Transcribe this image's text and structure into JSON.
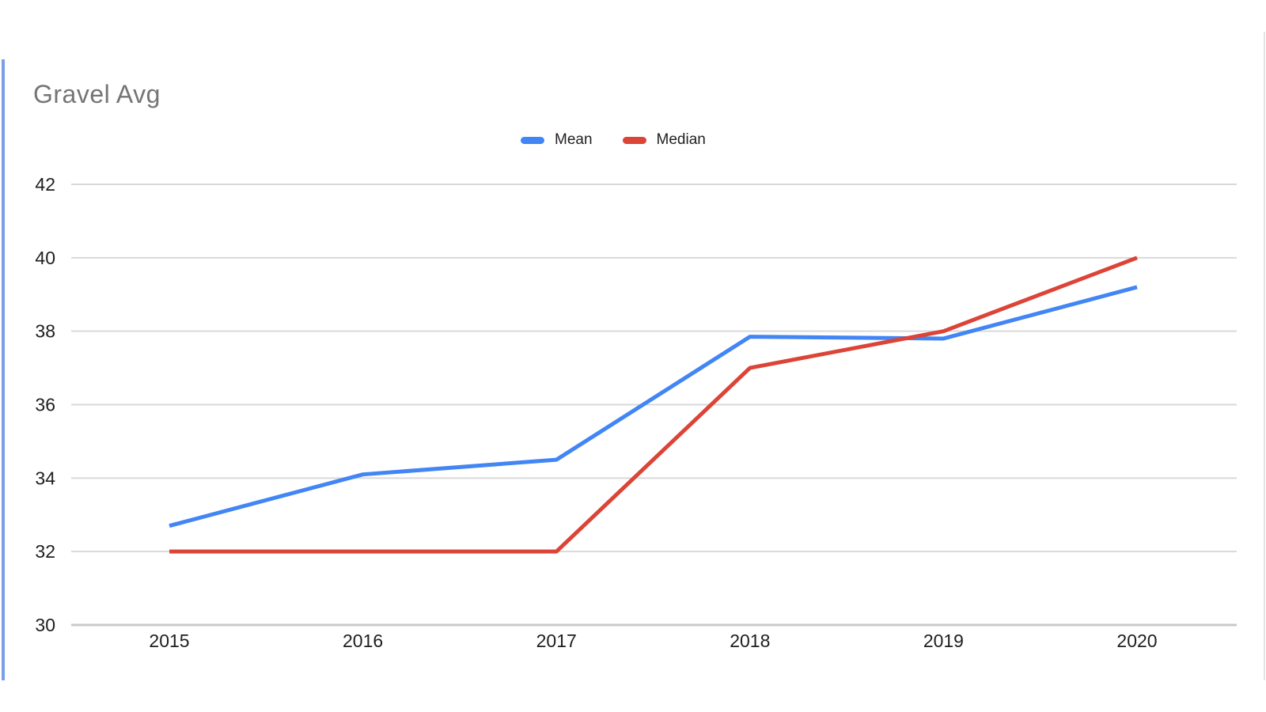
{
  "chart_title": "Gravel Avg",
  "legend": {
    "items": [
      {
        "label": "Mean"
      },
      {
        "label": "Median"
      }
    ]
  },
  "chart_data": {
    "type": "line",
    "title": "Gravel Avg",
    "x": [
      "2015",
      "2016",
      "2017",
      "2018",
      "2019",
      "2020"
    ],
    "series": [
      {
        "name": "Mean",
        "color": "#4285F4",
        "values": [
          32.7,
          34.1,
          34.5,
          37.85,
          37.8,
          39.2
        ]
      },
      {
        "name": "Median",
        "color": "#DB4437",
        "values": [
          32,
          32,
          32,
          37,
          38,
          40
        ]
      }
    ],
    "xlabel": "",
    "ylabel": "",
    "ylim": [
      30,
      42
    ],
    "yticks": [
      30,
      32,
      34,
      36,
      38,
      40,
      42
    ],
    "grid": true,
    "legend_position": "top-center"
  },
  "colors": {
    "title": "#757575",
    "tick_label": "#1e1e1e",
    "gridline": "#d9d9d9",
    "baseline": "#c9c9c9",
    "left_highlight": "#7b9fe8",
    "right_border": "#e4e4e4",
    "mean_line": "#4285F4",
    "median_line": "#DB4437"
  }
}
